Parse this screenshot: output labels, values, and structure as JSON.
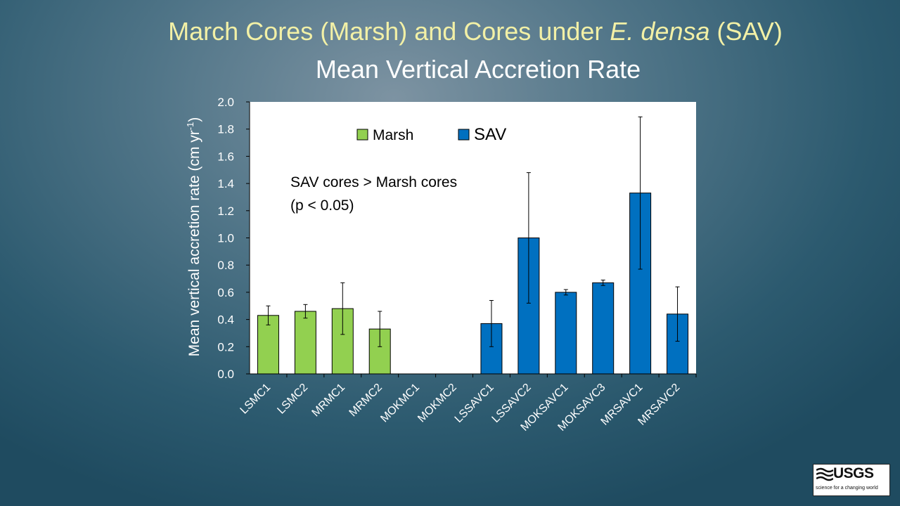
{
  "slide": {
    "title_part1": "March Cores (Marsh) and Cores under ",
    "title_italic": "E. densa",
    "title_part2": " (SAV)",
    "subtitle": "Mean Vertical Accretion Rate"
  },
  "logo": {
    "name": "USGS",
    "tagline": "science for a changing world"
  },
  "chart_data": {
    "type": "bar",
    "ylabel": "Mean vertical accretion rate (cm yr",
    "ylabel_sup": "-1",
    "ylabel_close": ")",
    "xlabel": "",
    "ylim": [
      0,
      2.0
    ],
    "yticks": [
      "0.0",
      "0.2",
      "0.4",
      "0.6",
      "0.8",
      "1.0",
      "1.2",
      "1.4",
      "1.6",
      "1.8",
      "2.0"
    ],
    "categories": [
      "LSMC1",
      "LSMC2",
      "MRMC1",
      "MRMC2",
      "MOKMC1",
      "MOKMC2",
      "LSSAVC1",
      "LSSAVC2",
      "MOKSAVC1",
      "MOKSAVC3",
      "MRSAVC1",
      "MRSAVC2"
    ],
    "values": [
      0.43,
      0.46,
      0.48,
      0.33,
      null,
      null,
      0.37,
      1.0,
      0.6,
      0.67,
      1.33,
      0.44
    ],
    "errors": [
      0.07,
      0.05,
      0.19,
      0.13,
      null,
      null,
      0.17,
      0.48,
      0.02,
      0.02,
      0.56,
      0.2
    ],
    "groups": [
      "Marsh",
      "Marsh",
      "Marsh",
      "Marsh",
      "Marsh",
      "Marsh",
      "SAV",
      "SAV",
      "SAV",
      "SAV",
      "SAV",
      "SAV"
    ],
    "legend": [
      {
        "name": "Marsh",
        "color": "#92d050"
      },
      {
        "name": "SAV",
        "color": "#0070c0"
      }
    ],
    "annotation": [
      "SAV cores > Marsh cores",
      "(p < 0.05)"
    ]
  }
}
